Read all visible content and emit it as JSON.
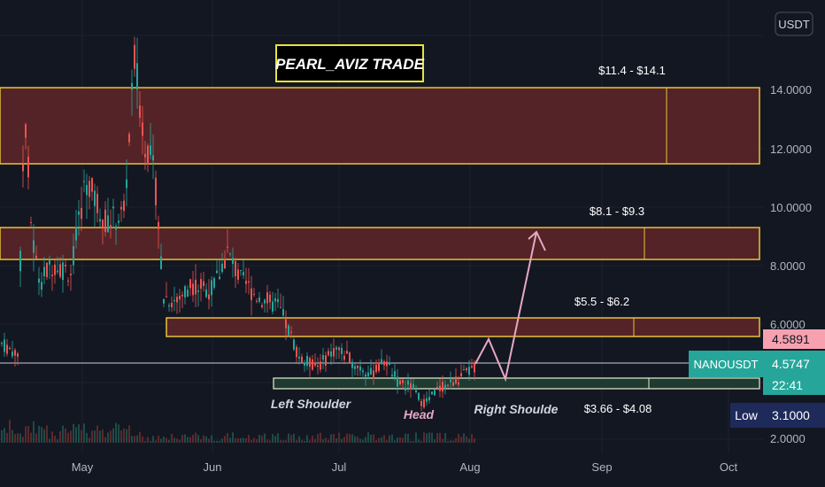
{
  "chart_data": {
    "type": "candlestick",
    "title": "PEARL_AVIZ TRADE",
    "symbol": "NANOUSDT",
    "currency": "USDT",
    "x_ticks": [
      "May",
      "Jun",
      "Jul",
      "Aug",
      "Sep",
      "Oct"
    ],
    "y_ticks": [
      "14.0000",
      "12.0000",
      "10.0000",
      "8.0000",
      "6.0000",
      "2.0000"
    ],
    "zones": [
      {
        "label": "$11.4 - $14.1",
        "low": 11.4,
        "high": 14.1,
        "kind": "resistance"
      },
      {
        "label": "$8.1 - $9.3",
        "low": 8.1,
        "high": 9.3,
        "kind": "resistance"
      },
      {
        "label": "$5.5 - $6.2",
        "low": 5.5,
        "high": 6.2,
        "kind": "resistance"
      },
      {
        "label": "$3.66 - $4.08",
        "low": 3.66,
        "high": 4.08,
        "kind": "support"
      }
    ],
    "pattern_labels": {
      "left": "Left Shoulder",
      "head": "Head",
      "right": "Right Shoulde"
    },
    "price_tags": {
      "upper": "4.5891",
      "last": "4.5747",
      "countdown": "22:41",
      "low_label": "Low",
      "low_value": "3.1000"
    },
    "projection": [
      4.6,
      3.9,
      9.0
    ]
  }
}
